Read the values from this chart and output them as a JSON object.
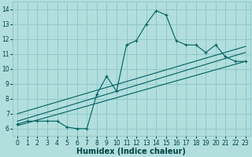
{
  "xlabel": "Humidex (Indice chaleur)",
  "xlim": [
    -0.5,
    23.5
  ],
  "ylim": [
    5.5,
    14.5
  ],
  "bg_color": "#b2dede",
  "grid_color": "#90c8c8",
  "line_color": "#006060",
  "curve_x": [
    0,
    1,
    2,
    3,
    4,
    5,
    6,
    7,
    8,
    9,
    10,
    11,
    12,
    13,
    14,
    15,
    16,
    17,
    18,
    19,
    20,
    21,
    22,
    23
  ],
  "curve_y": [
    6.3,
    6.5,
    6.5,
    6.5,
    6.5,
    6.1,
    6.0,
    6.0,
    8.3,
    9.5,
    8.5,
    11.6,
    11.9,
    13.0,
    13.9,
    13.6,
    11.9,
    11.6,
    11.6,
    11.1,
    11.6,
    10.8,
    10.5,
    10.5
  ],
  "line1_x": [
    0,
    23
  ],
  "line1_y": [
    6.5,
    11.1
  ],
  "line2_x": [
    0,
    23
  ],
  "line2_y": [
    6.2,
    10.5
  ],
  "line3_x": [
    0,
    23
  ],
  "line3_y": [
    7.0,
    11.5
  ],
  "xticks": [
    0,
    1,
    2,
    3,
    4,
    5,
    6,
    7,
    8,
    9,
    10,
    11,
    12,
    13,
    14,
    15,
    16,
    17,
    18,
    19,
    20,
    21,
    22,
    23
  ],
  "yticks": [
    6,
    7,
    8,
    9,
    10,
    11,
    12,
    13,
    14
  ],
  "tick_fontsize": 5.5,
  "xlabel_fontsize": 7.0,
  "title_fontsize": 6.5,
  "text_color": "#004444"
}
